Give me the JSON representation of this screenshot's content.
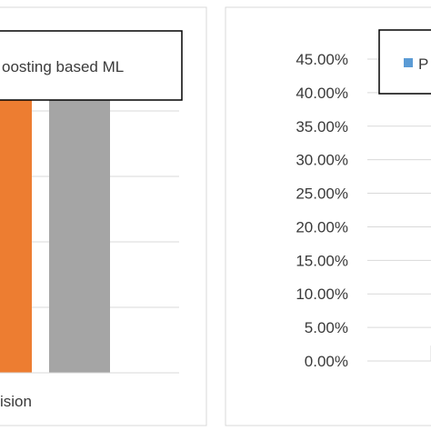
{
  "chart_data": [
    {
      "type": "bar",
      "legend_text": "oosting based ML",
      "categories": [
        "ision"
      ],
      "series": [
        {
          "values": [
            88.0
          ],
          "color": "#ed7d31"
        },
        {
          "values": [
            87.0
          ],
          "color": "#a5a5a5"
        }
      ],
      "ylim": [
        0,
        100
      ],
      "grid": true,
      "gridline_color": "#d9d9d9",
      "legend_position": "top"
    },
    {
      "type": "bar",
      "legend_text": "P",
      "legend_color": "#5b9bd5",
      "y_tick_labels": [
        "0.00%",
        "5.00%",
        "10.00%",
        "15.00%",
        "20.00%",
        "25.00%",
        "30.00%",
        "35.00%",
        "40.00%",
        "45.00%"
      ],
      "ylim": [
        0,
        0.45
      ],
      "grid": true,
      "gridline_color": "#d9d9d9",
      "legend_position": "top-right",
      "categories": [],
      "series": []
    }
  ]
}
